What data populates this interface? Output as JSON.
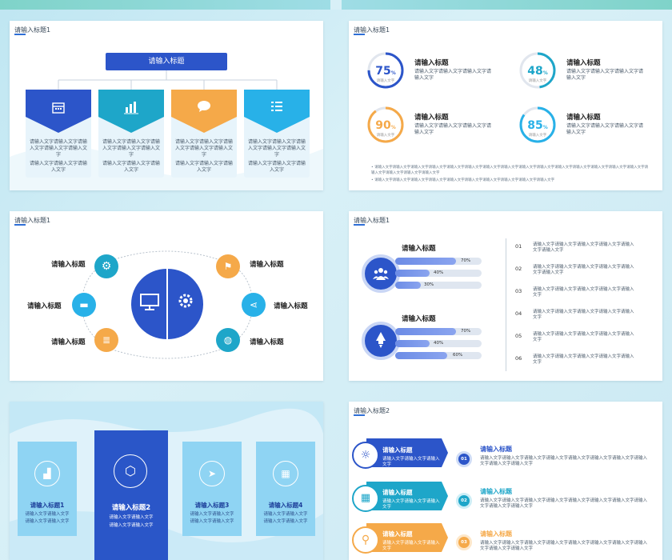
{
  "slide1": {
    "title": "请输入标题1",
    "header": "请输入标题",
    "columns": [
      {
        "icon": "calendar-icon",
        "color": "#2c55c9",
        "text1": "请输入文字请输入文字请输入文字请输入文字请输入文字",
        "text2": "请输入文字请输入文字请输入文字"
      },
      {
        "icon": "bar-chart-icon",
        "color": "#1ea6c9",
        "text1": "请输入文字请输入文字请输入文字请输入文字请输入文字",
        "text2": "请输入文字请输入文字请输入文字"
      },
      {
        "icon": "chat-bubble-icon",
        "color": "#f5a949",
        "text1": "请输入文字请输入文字请输入文字请输入文字请输入文字",
        "text2": "请输入文字请输入文字请输入文字"
      },
      {
        "icon": "list-icon",
        "color": "#28b1e8",
        "text1": "请输入文字请输入文字请输入文字请输入文字请输入文字",
        "text2": "请输入文字请输入文字请输入文字"
      }
    ]
  },
  "slide2": {
    "title": "请输入标题1",
    "rings": [
      {
        "value": "75",
        "percent": 75,
        "unit": "%",
        "sub": "请输入文字",
        "color": "#2c55c9",
        "heading": "请输入标题",
        "text": "请输入文字请输入文字请输入文字请输入文字"
      },
      {
        "value": "48",
        "percent": 48,
        "unit": "%",
        "sub": "请输入文字",
        "color": "#1ea6c9",
        "heading": "请输入标题",
        "text": "请输入文字请输入文字请输入文字请输入文字"
      },
      {
        "value": "90",
        "percent": 90,
        "unit": "%",
        "sub": "请输入文字",
        "color": "#f5a949",
        "heading": "请输入标题",
        "text": "请输入文字请输入文字请输入文字请输入文字"
      },
      {
        "value": "85",
        "percent": 85,
        "unit": "%",
        "sub": "请输入文字",
        "color": "#28b1e8",
        "heading": "请输入标题",
        "text": "请输入文字请输入文字请输入文字请输入文字"
      }
    ],
    "bullets": [
      "请输入文字请输入文字请输入文字请输入文字请输入文字请输入文字请输入文字请输入文字请输入文字请输入文字请输入文字请输入文字请输入文字请输入文字请输入文字请输入文字请输入文字请输入文字请输入文字",
      "请输入文字请输入文字请输入文字请输入文字请输入文字请输入文字请输入文字请输入文字请输入文字请输入文字"
    ]
  },
  "slide3": {
    "title": "请输入标题1",
    "labels": [
      "请输入标题",
      "请输入标题",
      "请输入标题",
      "请输入标题",
      "请输入标题",
      "请输入标题"
    ]
  },
  "slide4": {
    "title": "请输入标题1",
    "groups": [
      {
        "heading": "请输入标题",
        "bars": [
          70,
          40,
          30
        ],
        "labels": [
          "70%",
          "40%",
          "30%"
        ]
      },
      {
        "heading": "请输入标题",
        "bars": [
          70,
          40,
          60
        ],
        "labels": [
          "70%",
          "40%",
          "60%"
        ]
      }
    ],
    "list": [
      {
        "num": "01",
        "text": "请输入文字请输入文字请输入文字请输入文字请输入文字请输入文字"
      },
      {
        "num": "02",
        "text": "请输入文字请输入文字请输入文字请输入文字请输入文字请输入文字"
      },
      {
        "num": "03",
        "text": "请输入文字请输入文字请输入文字请输入文字请输入文字"
      },
      {
        "num": "04",
        "text": "请输入文字请输入文字请输入文字请输入文字请输入文字"
      },
      {
        "num": "05",
        "text": "请输入文字请输入文字请输入文字请输入文字请输入文字"
      },
      {
        "num": "06",
        "text": "请输入文字请输入文字请输入文字请输入文字请输入文字"
      }
    ]
  },
  "slide5": {
    "cards": [
      {
        "title": "请输入标题1",
        "text1": "请输入文字请输入文字",
        "text2": "请输入文字请输入文字",
        "icon": "chart-icon"
      },
      {
        "title": "请输入标题2",
        "text1": "请输入文字请输入文字",
        "text2": "请输入文字请输入文字",
        "icon": "cube-icon"
      },
      {
        "title": "请输入标题3",
        "text1": "请输入文字请输入文字",
        "text2": "请输入文字请输入文字",
        "icon": "paper-plane-icon"
      },
      {
        "title": "请输入标题4",
        "text1": "请输入文字请输入文字",
        "text2": "请输入文字请输入文字",
        "icon": "calendar-icon"
      }
    ]
  },
  "slide6": {
    "title": "请输入标题2",
    "rows": [
      {
        "color": "#2c55c9",
        "icon": "lightbulb-icon",
        "btitle": "请输入标题",
        "btext": "请输入文字请输入文字请输入文字",
        "num": "01",
        "rtitle": "请输入标题",
        "rtext": "请输入文字请输入文字请输入文字请输入文字请输入文字请输入文字请输入文字请输入文字请输入文字请输入文字"
      },
      {
        "color": "#1ea6c9",
        "icon": "calendar-icon",
        "btitle": "请输入标题",
        "btext": "请输入文字请输入文字请输入文字",
        "num": "02",
        "rtitle": "请输入标题",
        "rtext": "请输入文字请输入文字请输入文字请输入文字请输入文字请输入文字请输入文字请输入文字请输入文字请输入文字"
      },
      {
        "color": "#f5a949",
        "icon": "location-pin-icon",
        "btitle": "请输入标题",
        "btext": "请输入文字请输入文字请输入文字",
        "num": "03",
        "rtitle": "请输入标题",
        "rtext": "请输入文字请输入文字请输入文字请输入文字请输入文字请输入文字请输入文字请输入文字请输入文字请输入文字"
      }
    ]
  }
}
